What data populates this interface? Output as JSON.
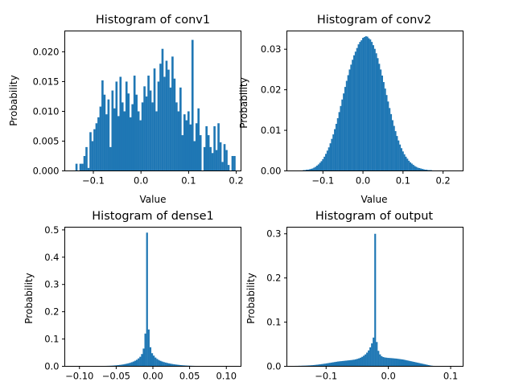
{
  "chart_data": [
    {
      "type": "bar",
      "title": "Histogram of conv1",
      "xlabel": "Value",
      "ylabel": "Probability",
      "xlim": [
        -0.16,
        0.21
      ],
      "ylim": [
        0,
        0.0235
      ],
      "xticks": [
        -0.1,
        0.0,
        0.1,
        0.2
      ],
      "xtick_labels": [
        "−0.1",
        "0.0",
        "0.1",
        "0.2"
      ],
      "yticks": [
        0.0,
        0.005,
        0.01,
        0.015,
        0.02
      ],
      "ytick_labels": [
        "0.000",
        "0.005",
        "0.010",
        "0.015",
        "0.020"
      ],
      "color": "#1f77b4",
      "x": [
        -0.1376,
        -0.1334,
        -0.1292,
        -0.125,
        -0.1208,
        -0.1166,
        -0.1124,
        -0.1082,
        -0.104,
        -0.0998,
        -0.0956,
        -0.0914,
        -0.0872,
        -0.083,
        -0.0788,
        -0.0746,
        -0.0704,
        -0.0662,
        -0.062,
        -0.0578,
        -0.0536,
        -0.0494,
        -0.0452,
        -0.041,
        -0.0368,
        -0.0326,
        -0.0284,
        -0.0242,
        -0.02,
        -0.0158,
        -0.0116,
        -0.0074,
        -0.0032,
        0.001,
        0.0052,
        0.0094,
        0.0136,
        0.0178,
        0.022,
        0.0262,
        0.0304,
        0.0346,
        0.0388,
        0.043,
        0.0472,
        0.0514,
        0.0556,
        0.0598,
        0.064,
        0.0682,
        0.0724,
        0.0766,
        0.0808,
        0.085,
        0.0892,
        0.0934,
        0.0976,
        0.1018,
        0.106,
        0.1102,
        0.1144,
        0.1186,
        0.1228,
        0.127,
        0.1312,
        0.1354,
        0.1396,
        0.1438,
        0.148,
        0.1522,
        0.1564,
        0.1606,
        0.1648,
        0.169,
        0.1732,
        0.1774,
        0.1816,
        0.1858,
        0.19,
        0.1942
      ],
      "values": [
        0.0012,
        0.0,
        0.0012,
        0.0012,
        0.0025,
        0.004,
        0.0005,
        0.0065,
        0.005,
        0.007,
        0.008,
        0.009,
        0.0108,
        0.0152,
        0.0128,
        0.0095,
        0.012,
        0.004,
        0.0135,
        0.0105,
        0.015,
        0.0092,
        0.0158,
        0.0115,
        0.01,
        0.015,
        0.013,
        0.009,
        0.0112,
        0.016,
        0.0128,
        0.01,
        0.0085,
        0.0115,
        0.0142,
        0.0125,
        0.016,
        0.0135,
        0.0115,
        0.0172,
        0.01,
        0.015,
        0.018,
        0.0205,
        0.0158,
        0.0185,
        0.017,
        0.014,
        0.0192,
        0.0155,
        0.0115,
        0.01,
        0.014,
        0.006,
        0.0095,
        0.0085,
        0.01,
        0.0078,
        0.022,
        0.005,
        0.008,
        0.0105,
        0.006,
        0.0,
        0.004,
        0.0075,
        0.006,
        0.004,
        0.003,
        0.0075,
        0.0035,
        0.008,
        0.0048,
        0.0015,
        0.0045,
        0.0035,
        0.001,
        0.0,
        0.0025,
        0.0025
      ]
    },
    {
      "type": "bar",
      "title": "Histogram of conv2",
      "xlabel": "Value",
      "ylabel": "Probability",
      "xlim": [
        -0.19,
        0.25
      ],
      "ylim": [
        0,
        0.0345
      ],
      "xticks": [
        -0.1,
        0.0,
        0.1,
        0.2
      ],
      "xtick_labels": [
        "−0.1",
        "0.0",
        "0.1",
        "0.2"
      ],
      "yticks": [
        0.0,
        0.01,
        0.02,
        0.03
      ],
      "ytick_labels": [
        "0.00",
        "0.01",
        "0.02",
        "0.03"
      ],
      "color": "#1f77b4",
      "bin_width": 0.0037,
      "bin_start": -0.15,
      "values": [
        0.0002,
        0.0002,
        0.0003,
        0.0003,
        0.0004,
        0.0005,
        0.0006,
        0.0008,
        0.001,
        0.0013,
        0.0016,
        0.002,
        0.0024,
        0.0029,
        0.0035,
        0.0042,
        0.005,
        0.0058,
        0.0068,
        0.0079,
        0.009,
        0.0103,
        0.0116,
        0.013,
        0.0145,
        0.016,
        0.0176,
        0.0191,
        0.0207,
        0.0222,
        0.0236,
        0.025,
        0.0262,
        0.0274,
        0.0285,
        0.0294,
        0.0303,
        0.0312,
        0.0318,
        0.0322,
        0.0328,
        0.033,
        0.0332,
        0.0331,
        0.0327,
        0.0324,
        0.0318,
        0.031,
        0.0301,
        0.029,
        0.0278,
        0.0264,
        0.025,
        0.0235,
        0.0219,
        0.0203,
        0.0187,
        0.0171,
        0.0155,
        0.014,
        0.0125,
        0.0111,
        0.0098,
        0.0086,
        0.0075,
        0.0065,
        0.0056,
        0.0048,
        0.0041,
        0.0035,
        0.003,
        0.0025,
        0.0021,
        0.0018,
        0.0015,
        0.0012,
        0.001,
        0.0008,
        0.0007,
        0.0006,
        0.0005,
        0.0004,
        0.0003,
        0.0003,
        0.0002,
        0.0002,
        0.0002,
        0.0001,
        0.0001,
        0.0001,
        0.0001,
        0.0001,
        0.0001,
        0.0001,
        0.0001,
        0.0,
        0.0,
        0.0,
        0.0,
        0.0001
      ]
    },
    {
      "type": "bar",
      "title": "Histogram of dense1",
      "xlabel": "",
      "ylabel": "Probability",
      "xlim": [
        -0.12,
        0.12
      ],
      "ylim": [
        0,
        0.51
      ],
      "xticks": [
        -0.1,
        -0.05,
        0.0,
        0.05,
        0.1
      ],
      "xtick_labels": [
        "−0.10",
        "−0.05",
        "0.00",
        "0.05",
        "0.10"
      ],
      "yticks": [
        0.0,
        0.1,
        0.2,
        0.3,
        0.4,
        0.5
      ],
      "ytick_labels": [
        "0.0",
        "0.1",
        "0.2",
        "0.3",
        "0.4",
        "0.5"
      ],
      "color": "#1f77b4",
      "bin_width": 0.0023,
      "bin_start": -0.115,
      "values": [
        0.0005,
        0.0005,
        0.0005,
        0.0005,
        0.0005,
        0.0005,
        0.0005,
        0.0005,
        0.0005,
        0.0005,
        0.0006,
        0.0006,
        0.0007,
        0.0007,
        0.0008,
        0.0008,
        0.0009,
        0.001,
        0.0011,
        0.0012,
        0.0013,
        0.0014,
        0.0016,
        0.0018,
        0.002,
        0.0023,
        0.0027,
        0.0032,
        0.0038,
        0.0045,
        0.0052,
        0.006,
        0.007,
        0.0082,
        0.0095,
        0.011,
        0.0128,
        0.015,
        0.0175,
        0.0205,
        0.024,
        0.029,
        0.035,
        0.045,
        0.065,
        0.12,
        0.49,
        0.135,
        0.07,
        0.048,
        0.039,
        0.032,
        0.027,
        0.023,
        0.02,
        0.0175,
        0.0155,
        0.0138,
        0.0122,
        0.0108,
        0.0096,
        0.0085,
        0.0075,
        0.0066,
        0.0058,
        0.0051,
        0.0045,
        0.0039,
        0.0034,
        0.003,
        0.0026,
        0.0023,
        0.002,
        0.0018,
        0.0016,
        0.0014,
        0.0013,
        0.0012,
        0.0011,
        0.001,
        0.0009,
        0.0008,
        0.0008,
        0.0007,
        0.0007,
        0.0006,
        0.0006,
        0.0006,
        0.0005,
        0.0005,
        0.0005,
        0.0005,
        0.0005,
        0.0005,
        0.0005,
        0.0005,
        0.0005,
        0.0005,
        0.0005,
        0.0005
      ]
    },
    {
      "type": "bar",
      "title": "Histogram of output",
      "xlabel": "",
      "ylabel": "Probability",
      "xlim": [
        -0.163,
        0.12
      ],
      "ylim": [
        0,
        0.315
      ],
      "xticks": [
        -0.1,
        0.0,
        0.1
      ],
      "xtick_labels": [
        "−0.1",
        "0.0",
        "0.1"
      ],
      "yticks": [
        0.0,
        0.1,
        0.2,
        0.3
      ],
      "ytick_labels": [
        "0.0",
        "0.1",
        "0.2",
        "0.3"
      ],
      "color": "#1f77b4",
      "bin_width": 0.0026,
      "bin_start": -0.15,
      "values": [
        0.001,
        0.001,
        0.0012,
        0.0012,
        0.0014,
        0.0015,
        0.0016,
        0.0018,
        0.002,
        0.0022,
        0.0025,
        0.0028,
        0.0032,
        0.0036,
        0.004,
        0.0045,
        0.005,
        0.0055,
        0.006,
        0.0066,
        0.0072,
        0.0078,
        0.0084,
        0.009,
        0.0096,
        0.0102,
        0.0108,
        0.0112,
        0.0116,
        0.012,
        0.0124,
        0.0128,
        0.0132,
        0.0136,
        0.014,
        0.0145,
        0.015,
        0.0158,
        0.0168,
        0.018,
        0.0195,
        0.0215,
        0.024,
        0.027,
        0.031,
        0.036,
        0.043,
        0.052,
        0.065,
        0.3,
        0.055,
        0.035,
        0.027,
        0.023,
        0.021,
        0.02,
        0.0195,
        0.019,
        0.0188,
        0.0185,
        0.0182,
        0.0178,
        0.0175,
        0.017,
        0.0165,
        0.016,
        0.0155,
        0.0148,
        0.014,
        0.0132,
        0.0124,
        0.0116,
        0.0108,
        0.01,
        0.0092,
        0.0084,
        0.0076,
        0.0068,
        0.006,
        0.0052,
        0.0044,
        0.0036,
        0.0028,
        0.002,
        0.0014,
        0.001,
        0.0007,
        0.0005,
        0.0003,
        0.0002
      ]
    }
  ]
}
